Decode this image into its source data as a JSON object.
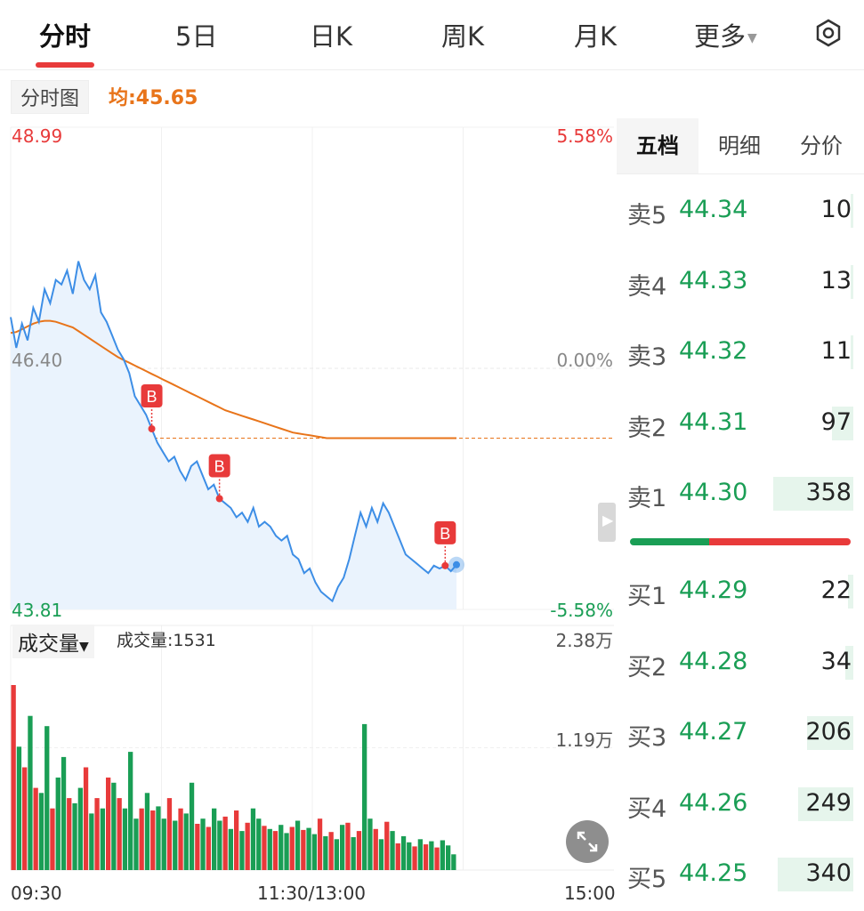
{
  "tabs": [
    {
      "label": "分时",
      "active": true
    },
    {
      "label": "5日"
    },
    {
      "label": "日K"
    },
    {
      "label": "周K"
    },
    {
      "label": "月K"
    },
    {
      "label": "更多"
    }
  ],
  "subbar": {
    "mode": "分时图",
    "avg": "均:45.65"
  },
  "price_axis": {
    "high": "48.99",
    "mid": "46.40",
    "low": "43.81",
    "pct_high": "5.58%",
    "pct_mid": "0.00%",
    "pct_low": "-5.58%"
  },
  "volume": {
    "selector": "成交量",
    "label": "成交量:1531",
    "max": "2.38万",
    "mid": "1.19万"
  },
  "time_axis": {
    "start": "09:30",
    "mid": "11:30/13:00",
    "end": "15:00"
  },
  "marker_label": "B",
  "side": {
    "tabs": [
      "五档",
      "明细",
      "分价"
    ],
    "sell": [
      {
        "label": "卖5",
        "price": "44.34",
        "vol": "10"
      },
      {
        "label": "卖4",
        "price": "44.33",
        "vol": "13"
      },
      {
        "label": "卖3",
        "price": "44.32",
        "vol": "11"
      },
      {
        "label": "卖2",
        "price": "44.31",
        "vol": "97"
      },
      {
        "label": "卖1",
        "price": "44.30",
        "vol": "358"
      }
    ],
    "buy": [
      {
        "label": "买1",
        "price": "44.29",
        "vol": "22"
      },
      {
        "label": "买2",
        "price": "44.28",
        "vol": "34"
      },
      {
        "label": "买3",
        "price": "44.27",
        "vol": "206"
      },
      {
        "label": "买4",
        "price": "44.26",
        "vol": "249"
      },
      {
        "label": "买5",
        "price": "44.25",
        "vol": "340"
      }
    ],
    "buy_ratio": 0.36
  },
  "colors": {
    "up": "#e83a3a",
    "down": "#1a9e55",
    "price_line": "#3d8ee6",
    "avg_line": "#e8741a"
  },
  "chart_data": {
    "type": "line",
    "ylim": [
      43.81,
      48.99
    ],
    "prev_close": 46.4,
    "series": [
      {
        "values": [
          46.95,
          46.62,
          46.88,
          46.7,
          47.05,
          46.9,
          47.25,
          47.1,
          47.35,
          47.3,
          47.45,
          47.2,
          47.55,
          47.35,
          47.25,
          47.4,
          47.0,
          46.9,
          46.75,
          46.6,
          46.5,
          46.35,
          46.1,
          46.0,
          45.9,
          45.75,
          45.6,
          45.5,
          45.4,
          45.45,
          45.3,
          45.2,
          45.35,
          45.4,
          45.25,
          45.1,
          45.15,
          45.0,
          44.95,
          44.9,
          44.8,
          44.85,
          44.75,
          44.9,
          44.7,
          44.75,
          44.7,
          44.6,
          44.55,
          44.6,
          44.4,
          44.35,
          44.2,
          44.25,
          44.1,
          44.0,
          43.95,
          43.9,
          44.05,
          44.15,
          44.35,
          44.6,
          44.85,
          44.7,
          44.9,
          44.75,
          44.95,
          44.85,
          44.7,
          44.55,
          44.4,
          44.35,
          44.3,
          44.25,
          44.2,
          44.28,
          44.25,
          44.28,
          44.22,
          44.29
        ]
      },
      {
        "values": [
          46.78,
          46.79,
          46.82,
          46.85,
          46.88,
          46.9,
          46.91,
          46.91,
          46.9,
          46.88,
          46.86,
          46.84,
          46.8,
          46.76,
          46.72,
          46.68,
          46.64,
          46.6,
          46.56,
          46.52,
          46.49,
          46.46,
          46.43,
          46.4,
          46.37,
          46.34,
          46.31,
          46.28,
          46.25,
          46.22,
          46.19,
          46.16,
          46.13,
          46.1,
          46.07,
          46.04,
          46.01,
          45.98,
          45.95,
          45.93,
          45.91,
          45.89,
          45.87,
          45.85,
          45.83,
          45.81,
          45.79,
          45.77,
          45.75,
          45.73,
          45.71,
          45.7,
          45.69,
          45.68,
          45.67,
          45.66,
          45.65,
          45.65,
          45.65,
          45.65,
          45.65,
          45.65,
          45.65,
          45.65,
          45.65,
          45.65,
          45.65,
          45.65,
          45.65,
          45.65,
          45.65,
          45.65,
          45.65,
          45.65,
          45.65,
          45.65,
          45.65,
          45.65,
          45.65,
          45.65
        ]
      }
    ],
    "volume_max": 23800,
    "volume": [
      18000,
      12000,
      10000,
      15000,
      8000,
      7500,
      14000,
      6000,
      9000,
      11000,
      7000,
      6500,
      8000,
      10000,
      5500,
      7000,
      6000,
      9000,
      8500,
      7000,
      6000,
      11500,
      5000,
      6000,
      7500,
      5800,
      6200,
      5000,
      7000,
      4800,
      6000,
      5500,
      8500,
      4500,
      5000,
      4200,
      6000,
      4800,
      5200,
      4000,
      5800,
      3800,
      4600,
      6000,
      5000,
      4300,
      4000,
      3800,
      4400,
      3600,
      4200,
      4800,
      3900,
      4100,
      3500,
      5000,
      3300,
      3700,
      3000,
      4400,
      4600,
      3200,
      3800,
      14200,
      5000,
      4000,
      3000,
      4700,
      3800,
      2600,
      3300,
      2700,
      2300,
      3000,
      2500,
      2800,
      2200,
      2900,
      2400,
      1531
    ],
    "volume_up": [
      true,
      false,
      true,
      false,
      true,
      false,
      false,
      true,
      false,
      false,
      true,
      false,
      false,
      true,
      false,
      true,
      false,
      true,
      false,
      true,
      false,
      false,
      false,
      true,
      false,
      true,
      false,
      false,
      true,
      false,
      true,
      false,
      false,
      true,
      false,
      true,
      false,
      false,
      true,
      false,
      true,
      false,
      true,
      false,
      false,
      true,
      false,
      true,
      false,
      false,
      true,
      false,
      true,
      false,
      false,
      true,
      false,
      true,
      false,
      false,
      true,
      false,
      true,
      false,
      false,
      true,
      false,
      true,
      false,
      true,
      false,
      false,
      true,
      false,
      true,
      false,
      true,
      false,
      false,
      false
    ],
    "trade_marks": [
      25,
      37,
      77
    ]
  }
}
